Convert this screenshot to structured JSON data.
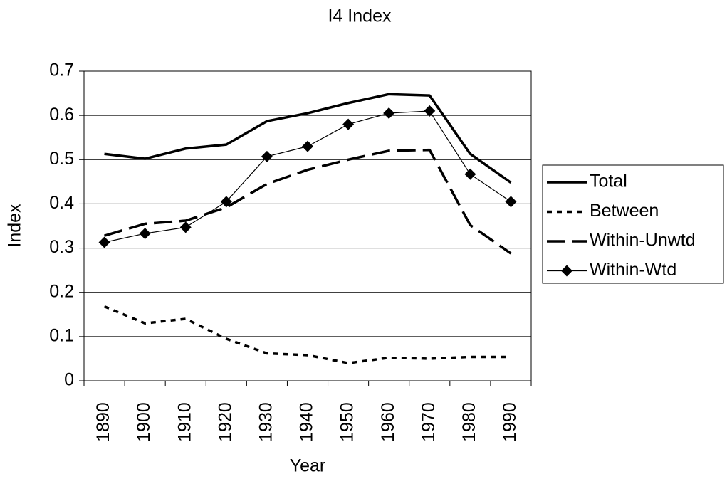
{
  "chart_data": {
    "type": "line",
    "title": "I4 Index",
    "x_label": "Year",
    "y_label": "Index",
    "categories": [
      "1890",
      "1900",
      "1910",
      "1920",
      "1930",
      "1940",
      "1950",
      "1960",
      "1970",
      "1980",
      "1990"
    ],
    "series": [
      {
        "name": "Total",
        "color": "#000000",
        "line_style": "solid",
        "width": 3.5,
        "values": [
          0.513,
          0.502,
          0.525,
          0.534,
          0.587,
          0.605,
          0.628,
          0.648,
          0.645,
          0.513,
          0.448
        ]
      },
      {
        "name": "Between",
        "color": "#000000",
        "line_style": "dotted",
        "width": 3.5,
        "values": [
          0.168,
          0.13,
          0.14,
          0.095,
          0.062,
          0.058,
          0.04,
          0.052,
          0.05,
          0.054,
          0.054
        ]
      },
      {
        "name": "Within-Unwtd",
        "color": "#000000",
        "line_style": "dashed",
        "width": 3.5,
        "values": [
          0.328,
          0.355,
          0.362,
          0.392,
          0.445,
          0.477,
          0.5,
          0.52,
          0.522,
          0.352,
          0.288
        ]
      },
      {
        "name": "Within-Wtd",
        "color": "#000000",
        "line_style": "solid",
        "width": 1.2,
        "marker": "diamond",
        "values": [
          0.313,
          0.333,
          0.347,
          0.405,
          0.507,
          0.53,
          0.58,
          0.605,
          0.61,
          0.467,
          0.405
        ]
      }
    ],
    "ylim": [
      0,
      0.7
    ],
    "yticks": [
      0,
      0.1,
      0.2,
      0.3,
      0.4,
      0.5,
      0.6,
      0.7
    ],
    "grid": true,
    "legend": "right"
  }
}
